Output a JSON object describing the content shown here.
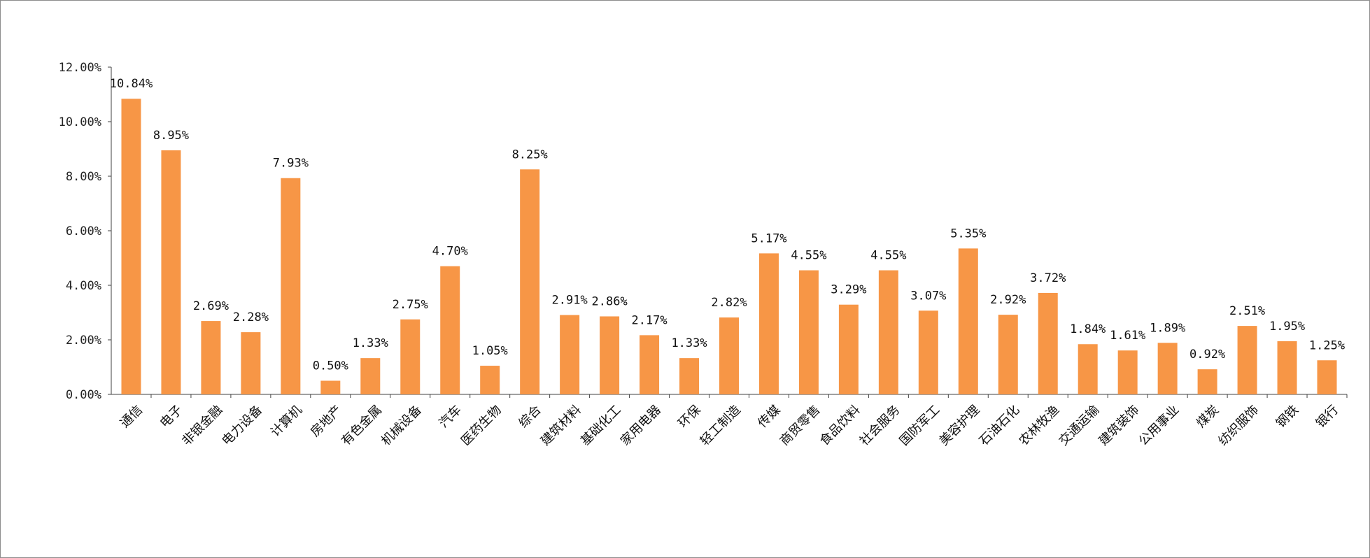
{
  "chart_data": {
    "type": "bar",
    "title": "",
    "xlabel": "",
    "ylabel": "",
    "ylim": [
      0,
      12
    ],
    "y_ticks": [
      "0.00%",
      "2.00%",
      "4.00%",
      "6.00%",
      "8.00%",
      "10.00%",
      "12.00%"
    ],
    "grid": false,
    "legend": "none",
    "bar_color": "#f79646",
    "categories": [
      "通信",
      "电子",
      "非银金融",
      "电力设备",
      "计算机",
      "房地产",
      "有色金属",
      "机械设备",
      "汽车",
      "医药生物",
      "综合",
      "建筑材料",
      "基础化工",
      "家用电器",
      "环保",
      "轻工制造",
      "传媒",
      "商贸零售",
      "食品饮料",
      "社会服务",
      "国防军工",
      "美容护理",
      "石油石化",
      "农林牧渔",
      "交通运输",
      "建筑装饰",
      "公用事业",
      "煤炭",
      "纺织服饰",
      "钢铁",
      "银行"
    ],
    "values": [
      10.84,
      8.95,
      2.69,
      2.28,
      7.93,
      0.5,
      1.33,
      2.75,
      4.7,
      1.05,
      8.25,
      2.91,
      2.86,
      2.17,
      1.33,
      2.82,
      5.17,
      4.55,
      3.29,
      4.55,
      3.07,
      5.35,
      2.92,
      3.72,
      1.84,
      1.61,
      1.89,
      0.92,
      2.51,
      1.95,
      1.25
    ],
    "data_labels": [
      "10.84%",
      "8.95%",
      "2.69%",
      "2.28%",
      "7.93%",
      "0.50%",
      "1.33%",
      "2.75%",
      "4.70%",
      "1.05%",
      "8.25%",
      "2.91%",
      "2.86%",
      "2.17%",
      "1.33%",
      "2.82%",
      "5.17%",
      "4.55%",
      "3.29%",
      "4.55%",
      "3.07%",
      "5.35%",
      "2.92%",
      "3.72%",
      "1.84%",
      "1.61%",
      "1.89%",
      "0.92%",
      "2.51%",
      "1.95%",
      "1.25%"
    ]
  }
}
